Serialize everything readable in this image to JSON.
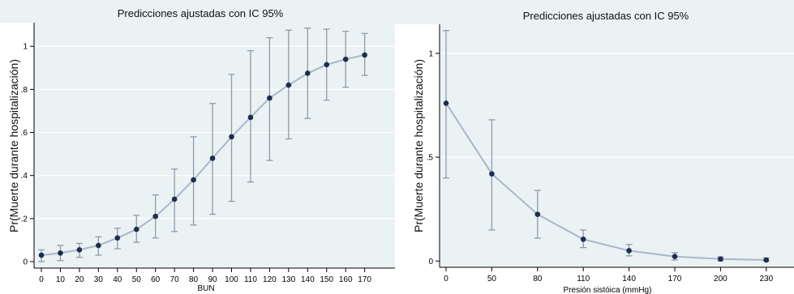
{
  "chart_data": [
    {
      "type": "line",
      "title": "Predicciones ajustadas con IC 95%",
      "xlabel": "BUN",
      "ylabel": "Pr(Muerte durante hospitalización)",
      "x": [
        0,
        10,
        20,
        30,
        40,
        50,
        60,
        70,
        80,
        90,
        100,
        110,
        120,
        130,
        140,
        150,
        160,
        170
      ],
      "x_tick_labels": [
        "0",
        "10",
        "20",
        "30",
        "40",
        "50",
        "60",
        "70",
        "80",
        "90",
        "100",
        "110",
        "120",
        "130",
        "140",
        "150",
        "160",
        "170"
      ],
      "xlim": [
        -3,
        173
      ],
      "ylim": [
        -0.03,
        1.11
      ],
      "y_ticks": [
        0,
        0.2,
        0.4,
        0.6,
        0.8,
        1
      ],
      "y_tick_labels": [
        "0",
        ".2",
        ".4",
        ".6",
        ".8",
        "1"
      ],
      "grid": true,
      "series": [
        {
          "values": [
            0.03,
            0.04,
            0.055,
            0.075,
            0.11,
            0.15,
            0.21,
            0.29,
            0.38,
            0.48,
            0.58,
            0.67,
            0.76,
            0.82,
            0.875,
            0.915,
            0.94,
            0.96
          ],
          "ci_lower": [
            0.0,
            0.005,
            0.02,
            0.03,
            0.06,
            0.09,
            0.11,
            0.14,
            0.17,
            0.22,
            0.28,
            0.37,
            0.47,
            0.57,
            0.665,
            0.75,
            0.81,
            0.865
          ],
          "ci_upper": [
            0.055,
            0.075,
            0.085,
            0.115,
            0.155,
            0.215,
            0.31,
            0.43,
            0.58,
            0.735,
            0.87,
            0.98,
            1.04,
            1.075,
            1.085,
            1.08,
            1.07,
            1.06
          ]
        }
      ],
      "colors": {
        "line": "#a9b6cc",
        "points": "#1c2e4a",
        "ci": "#8e9bab",
        "background": "#eaf2f3"
      }
    },
    {
      "type": "line",
      "title": "Predicciones ajustadas con IC 95%",
      "xlabel": "Presión sistóica (mmHg)",
      "ylabel": "Pr(Muerte durante hospitalización)",
      "x": [
        0,
        50,
        80,
        110,
        140,
        170,
        200,
        230
      ],
      "x_tick_labels": [
        "0",
        "50",
        "80",
        "110",
        "140",
        "170",
        "200",
        "230"
      ],
      "x_scale": "categorical-equal-spacing",
      "ylim": [
        -0.03,
        1.14
      ],
      "y_ticks": [
        0,
        0.5,
        1
      ],
      "y_tick_labels": [
        "0",
        ".5",
        "1"
      ],
      "grid": true,
      "series": [
        {
          "values": [
            0.76,
            0.42,
            0.225,
            0.105,
            0.05,
            0.022,
            0.01,
            0.005
          ],
          "ci_lower": [
            0.4,
            0.15,
            0.11,
            0.065,
            0.025,
            0.005,
            0.0,
            0.0
          ],
          "ci_upper": [
            1.11,
            0.68,
            0.34,
            0.15,
            0.08,
            0.04,
            0.02,
            0.015
          ]
        }
      ],
      "colors": {
        "line": "#a9b6cc",
        "points": "#1c2e4a",
        "ci": "#8e9bab",
        "background": "#eaf2f3"
      }
    }
  ]
}
